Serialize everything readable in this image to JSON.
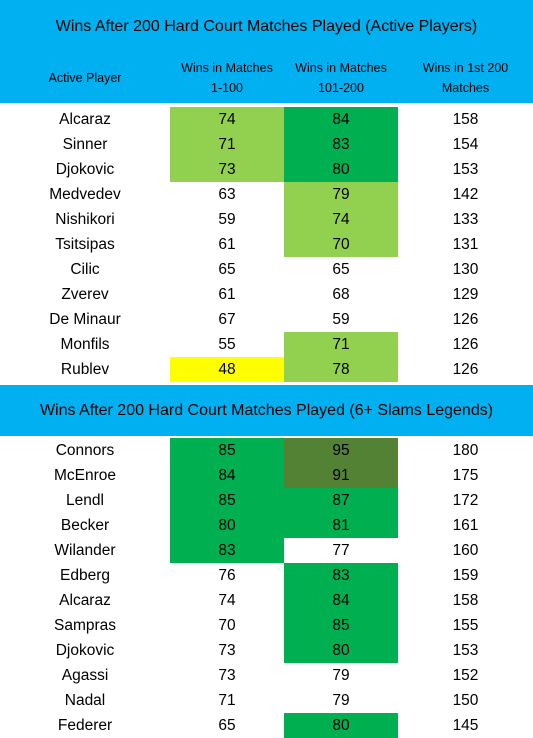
{
  "colors": {
    "band": "#00b0f0",
    "light_green": "#92d050",
    "green": "#00b050",
    "dark_green": "#548235",
    "yellow": "#ffff00",
    "white": "#ffffff"
  },
  "tables": [
    {
      "title": "Wins After 200 Hard Court Matches Played (Active Players)",
      "headers": [
        "Active Player",
        "Wins in Matches\n1-100",
        "Wins in Matches\n101-200",
        "Wins in 1st 200\nMatches"
      ],
      "rows": [
        {
          "name": "Alcaraz",
          "a": "74",
          "b": "84",
          "c": "158",
          "a_color": "light_green",
          "b_color": "green"
        },
        {
          "name": "Sinner",
          "a": "71",
          "b": "83",
          "c": "154",
          "a_color": "light_green",
          "b_color": "green"
        },
        {
          "name": "Djokovic",
          "a": "73",
          "b": "80",
          "c": "153",
          "a_color": "light_green",
          "b_color": "green"
        },
        {
          "name": "Medvedev",
          "a": "63",
          "b": "79",
          "c": "142",
          "a_color": "white",
          "b_color": "light_green"
        },
        {
          "name": "Nishikori",
          "a": "59",
          "b": "74",
          "c": "133",
          "a_color": "white",
          "b_color": "light_green"
        },
        {
          "name": "Tsitsipas",
          "a": "61",
          "b": "70",
          "c": "131",
          "a_color": "white",
          "b_color": "light_green"
        },
        {
          "name": "Cilic",
          "a": "65",
          "b": "65",
          "c": "130",
          "a_color": "white",
          "b_color": "white"
        },
        {
          "name": "Zverev",
          "a": "61",
          "b": "68",
          "c": "129",
          "a_color": "white",
          "b_color": "white"
        },
        {
          "name": "De Minaur",
          "a": "67",
          "b": "59",
          "c": "126",
          "a_color": "white",
          "b_color": "white"
        },
        {
          "name": "Monfils",
          "a": "55",
          "b": "71",
          "c": "126",
          "a_color": "white",
          "b_color": "light_green"
        },
        {
          "name": "Rublev",
          "a": "48",
          "b": "78",
          "c": "126",
          "a_color": "yellow",
          "b_color": "light_green"
        }
      ]
    },
    {
      "title": "Wins After 200 Hard Court Matches Played (6+ Slams Legends)",
      "rows": [
        {
          "name": "Connors",
          "a": "85",
          "b": "95",
          "c": "180",
          "a_color": "green",
          "b_color": "dark_green"
        },
        {
          "name": "McEnroe",
          "a": "84",
          "b": "91",
          "c": "175",
          "a_color": "green",
          "b_color": "dark_green"
        },
        {
          "name": "Lendl",
          "a": "85",
          "b": "87",
          "c": "172",
          "a_color": "green",
          "b_color": "green"
        },
        {
          "name": "Becker",
          "a": "80",
          "b": "81",
          "c": "161",
          "a_color": "green",
          "b_color": "green"
        },
        {
          "name": "Wilander",
          "a": "83",
          "b": "77",
          "c": "160",
          "a_color": "green",
          "b_color": "white"
        },
        {
          "name": "Edberg",
          "a": "76",
          "b": "83",
          "c": "159",
          "a_color": "white",
          "b_color": "green"
        },
        {
          "name": "Alcaraz",
          "a": "74",
          "b": "84",
          "c": "158",
          "a_color": "white",
          "b_color": "green"
        },
        {
          "name": "Sampras",
          "a": "70",
          "b": "85",
          "c": "155",
          "a_color": "white",
          "b_color": "green"
        },
        {
          "name": "Djokovic",
          "a": "73",
          "b": "80",
          "c": "153",
          "a_color": "white",
          "b_color": "green"
        },
        {
          "name": "Agassi",
          "a": "73",
          "b": "79",
          "c": "152",
          "a_color": "white",
          "b_color": "white"
        },
        {
          "name": "Nadal",
          "a": "71",
          "b": "79",
          "c": "150",
          "a_color": "white",
          "b_color": "white"
        },
        {
          "name": "Federer",
          "a": "65",
          "b": "80",
          "c": "145",
          "a_color": "white",
          "b_color": "green"
        }
      ]
    }
  ]
}
